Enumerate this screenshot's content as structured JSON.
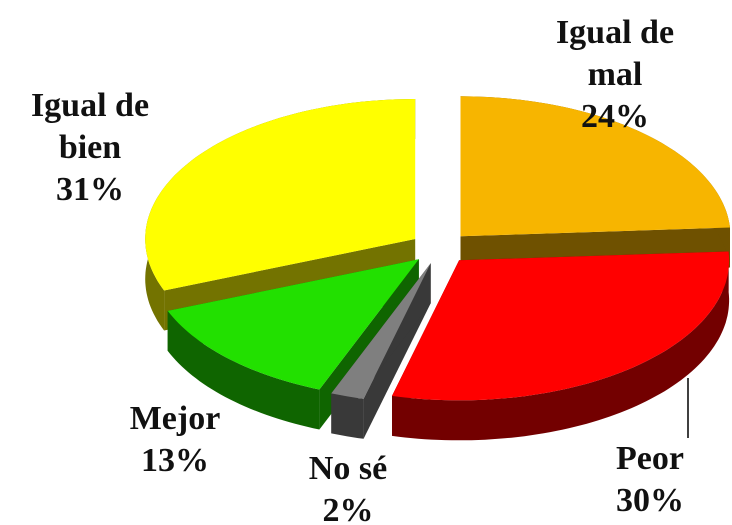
{
  "chart_data": {
    "type": "pie3d",
    "categories": [
      "Igual de mal",
      "Peor",
      "No sé",
      "Mejor",
      "Igual de bien"
    ],
    "values": [
      24,
      30,
      2,
      13,
      31
    ],
    "value_labels": [
      "24%",
      "30%",
      "2%",
      "13%",
      "31%"
    ],
    "colors": [
      "#f7b500",
      "#ff0000",
      "#7f7f7f",
      "#22e000",
      "#ffff00"
    ]
  }
}
